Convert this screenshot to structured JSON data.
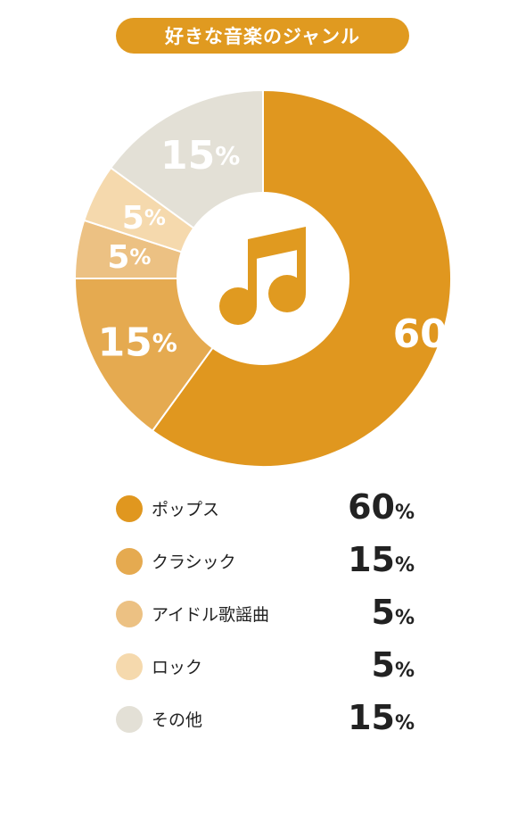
{
  "title": "好きな音楽のジャンル",
  "chart_data": {
    "type": "pie",
    "title": "好きな音楽のジャンル",
    "categories": [
      "ポップス",
      "クラシック",
      "アイドル歌謡曲",
      "ロック",
      "その他"
    ],
    "values": [
      60,
      15,
      5,
      5,
      15
    ],
    "unit": "%",
    "colors": [
      "#e0971f",
      "#e5aa50",
      "#ecc183",
      "#f5d9ad",
      "#e3e0d6"
    ],
    "value_label_colors": [
      "#ffffff",
      "#ffffff",
      "#ffffff",
      "#ffffff",
      "#ffffff"
    ],
    "center_icon": "music-note-icon",
    "center_icon_color": "#e09a20",
    "legend_position": "bottom"
  }
}
